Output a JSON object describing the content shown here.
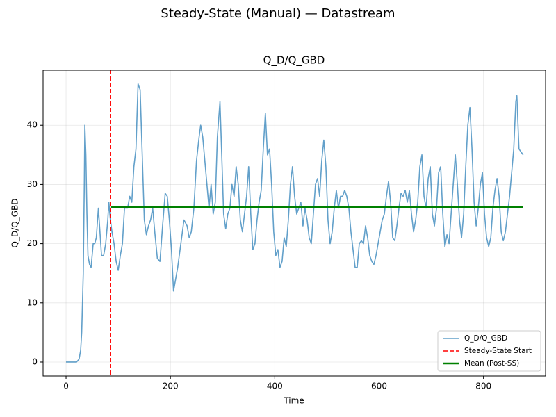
{
  "chart_data": {
    "type": "line",
    "suptitle": "Steady-State (Manual) — Datastream",
    "title": "Q_D/Q_GBD",
    "xlabel": "Time",
    "ylabel": "Q_D/Q_GBD",
    "x": [
      0,
      5,
      10,
      15,
      20,
      25,
      28,
      30,
      33,
      35,
      36,
      38,
      40,
      42,
      45,
      48,
      52,
      55,
      58,
      62,
      65,
      68,
      72,
      76,
      80,
      82,
      85,
      88,
      92,
      96,
      100,
      104,
      108,
      112,
      118,
      122,
      126,
      130,
      134,
      138,
      142,
      146,
      150,
      154,
      158,
      162,
      166,
      170,
      175,
      180,
      185,
      190,
      194,
      198,
      202,
      206,
      210,
      214,
      220,
      226,
      232,
      236,
      240,
      245,
      250,
      255,
      258,
      262,
      266,
      270,
      274,
      278,
      282,
      286,
      290,
      295,
      298,
      302,
      306,
      310,
      314,
      318,
      322,
      326,
      330,
      334,
      338,
      342,
      346,
      350,
      354,
      358,
      362,
      366,
      370,
      374,
      378,
      382,
      386,
      390,
      394,
      398,
      402,
      406,
      410,
      414,
      418,
      422,
      426,
      430,
      434,
      438,
      442,
      446,
      450,
      454,
      458,
      462,
      466,
      470,
      474,
      478,
      482,
      486,
      490,
      494,
      498,
      502,
      506,
      510,
      514,
      518,
      522,
      526,
      530,
      534,
      538,
      542,
      546,
      550,
      554,
      558,
      562,
      566,
      570,
      574,
      578,
      582,
      586,
      590,
      594,
      598,
      602,
      606,
      610,
      614,
      618,
      622,
      626,
      630,
      634,
      638,
      642,
      646,
      650,
      654,
      658,
      662,
      666,
      670,
      674,
      678,
      682,
      686,
      690,
      694,
      698,
      702,
      706,
      710,
      714,
      718,
      722,
      726,
      730,
      734,
      738,
      742,
      746,
      750,
      754,
      758,
      762,
      766,
      770,
      774,
      778,
      782,
      786,
      790,
      794,
      798,
      802,
      806,
      810,
      814,
      818,
      822,
      826,
      830,
      834,
      838,
      842,
      846,
      850,
      854,
      858,
      862,
      864,
      868,
      872,
      876
    ],
    "series": [
      {
        "name": "Q_D/Q_GBD",
        "color": "#1f77b4",
        "values": [
          0,
          0,
          0,
          0,
          0,
          0.5,
          2,
          5,
          15,
          30,
          40,
          35,
          25,
          18,
          16.5,
          16,
          20,
          20,
          21,
          26,
          22,
          18,
          18,
          20,
          24,
          27,
          24,
          22,
          20,
          17,
          15.5,
          18,
          20,
          26,
          26,
          28,
          27,
          33,
          36,
          47,
          46,
          35,
          24,
          21.5,
          23,
          24,
          26,
          22,
          17.5,
          17,
          23,
          28.5,
          28,
          24,
          19,
          12,
          14,
          16,
          20,
          24,
          23,
          21,
          22,
          26,
          34,
          38,
          40,
          38,
          34,
          30,
          26,
          30,
          25,
          27,
          38,
          44,
          36,
          25,
          22.5,
          25,
          26,
          30,
          28,
          33,
          30,
          24,
          22,
          25,
          28,
          33,
          25,
          19,
          20,
          24,
          27,
          29,
          36,
          42,
          35,
          36,
          30,
          22,
          18,
          19,
          16,
          17,
          21,
          19.5,
          24,
          30,
          33,
          28,
          25,
          26,
          27,
          23,
          26,
          24,
          21,
          20,
          25,
          30,
          31,
          28,
          34,
          37.5,
          33,
          24,
          20,
          22,
          26,
          29,
          26,
          28,
          28,
          29,
          28,
          26,
          22,
          19,
          16,
          16,
          20,
          20.5,
          20,
          23,
          21,
          18,
          17,
          16.5,
          18,
          20,
          22,
          24,
          25,
          28,
          30.5,
          27,
          21,
          20.5,
          23,
          26,
          28.5,
          28,
          29,
          27,
          29,
          25,
          22,
          24,
          27,
          33,
          35,
          28,
          26,
          31,
          33,
          25,
          23,
          26,
          32,
          33,
          25,
          19.5,
          21.5,
          20,
          25,
          30,
          35,
          30,
          24,
          21,
          25,
          33,
          40,
          43,
          36,
          27,
          23,
          26,
          30,
          32,
          25,
          21,
          19.5,
          21,
          26,
          29,
          31,
          28,
          22,
          20.5,
          22,
          25,
          28,
          32,
          36,
          44,
          45,
          36,
          35.5,
          35
        ]
      },
      {
        "name": "Steady-State Start",
        "color": "#ff0000",
        "x": 85
      },
      {
        "name": "Mean (Post-SS)",
        "color": "#008000",
        "x": [
          85,
          876
        ],
        "values": [
          26.2,
          26.2
        ]
      }
    ],
    "xlim": [
      -44,
      919
    ],
    "ylim": [
      -2.35,
      49.3
    ],
    "xticks": [
      0,
      200,
      400,
      600,
      800
    ],
    "yticks": [
      0,
      10,
      20,
      30,
      40
    ],
    "grid": true,
    "legend": "lower right"
  }
}
